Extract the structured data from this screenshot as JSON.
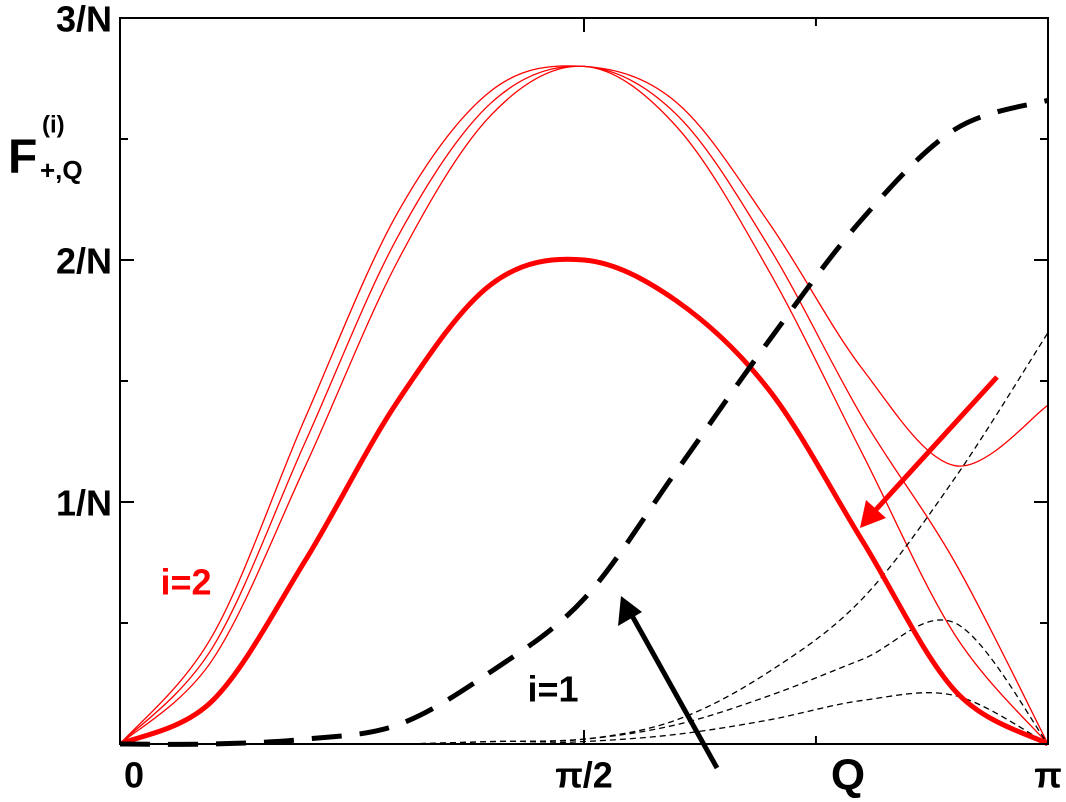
{
  "chart_data": {
    "type": "line",
    "x_label": "Q",
    "y_label": {
      "main": "F",
      "sup": "(i)",
      "sub": "+,Q"
    },
    "annotations": [
      {
        "text": "i=2",
        "color": "#ff0000"
      },
      {
        "text": "i=1",
        "color": "#000000"
      }
    ],
    "x": [
      0,
      0.314,
      0.628,
      0.942,
      1.257,
      1.571,
      1.885,
      2.199,
      2.513,
      2.827,
      3.1416
    ],
    "xlim": [
      0,
      3.1416
    ],
    "xticks": [
      0,
      {
        "value": 1.5708,
        "label": "π/2"
      },
      {
        "value": 3.1416,
        "label": "π"
      }
    ],
    "xminor": [
      2.356
    ],
    "ylim": [
      0,
      3
    ],
    "yticks": [
      {
        "value": 1,
        "label": "1/N"
      },
      {
        "value": 2,
        "label": "2/N"
      },
      {
        "value": 3,
        "label": "3/N"
      }
    ],
    "yminor": [
      0.5,
      1.5,
      2.5
    ],
    "series": [
      {
        "color": "#ff0000",
        "style": "solid",
        "width": 1.3,
        "values": [
          0,
          0.45,
          1.35,
          2.2,
          2.7,
          2.8,
          2.65,
          2.15,
          1.55,
          1.15,
          1.4
        ]
      },
      {
        "color": "#ff0000",
        "style": "solid",
        "width": 1.3,
        "values": [
          0,
          0.4,
          1.25,
          2.1,
          2.65,
          2.8,
          2.6,
          2.05,
          1.35,
          0.75,
          0
        ]
      },
      {
        "color": "#ff0000",
        "style": "solid",
        "width": 1.3,
        "values": [
          0,
          0.35,
          1.15,
          2.0,
          2.6,
          2.8,
          2.55,
          1.95,
          1.2,
          0.45,
          0
        ]
      },
      {
        "color": "#000000",
        "style": "dashed",
        "width": 1.3,
        "values": [
          0,
          0,
          0,
          0,
          0.01,
          0.02,
          0.1,
          0.3,
          0.6,
          1.1,
          1.7
        ]
      },
      {
        "color": "#000000",
        "style": "dashed",
        "width": 1.3,
        "values": [
          0,
          0,
          0,
          0,
          0.01,
          0.02,
          0.08,
          0.2,
          0.35,
          0.5,
          0
        ]
      },
      {
        "color": "#000000",
        "style": "dashed",
        "width": 1.3,
        "values": [
          0,
          0,
          0,
          0,
          0,
          0.01,
          0.04,
          0.1,
          0.18,
          0.2,
          0
        ]
      },
      {
        "color": "#ff0000",
        "style": "solid",
        "width": 5,
        "values": [
          0,
          0.18,
          0.76,
          1.42,
          1.9,
          2.0,
          1.83,
          1.46,
          0.84,
          0.22,
          0
        ]
      },
      {
        "color": "#000000",
        "style": "longdash",
        "width": 5,
        "values": [
          0,
          0,
          0.02,
          0.08,
          0.3,
          0.6,
          1.13,
          1.67,
          2.17,
          2.54,
          2.66
        ]
      }
    ]
  }
}
